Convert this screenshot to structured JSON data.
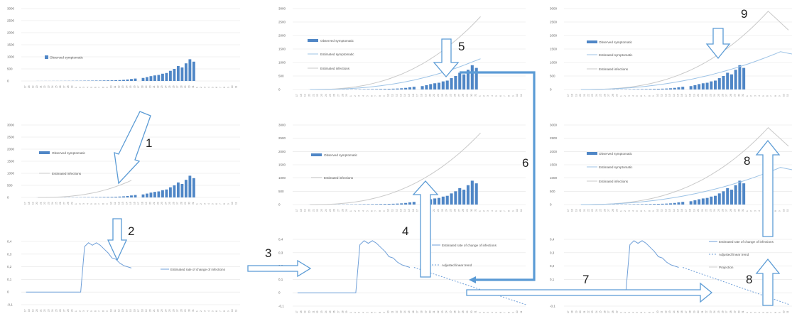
{
  "colors": {
    "bar": "#4f86c6",
    "observed_line": "#9dc3e6",
    "infection_line": "#c9c9c9",
    "rate_line": "#6f9fd8",
    "arrow_stroke": "#5b9bd5",
    "arrow_fill": "#ffffff",
    "connector": "#5b9bd5",
    "grid": "#e4e4e4"
  },
  "count_yticks": [
    "3000",
    "2500",
    "2000",
    "1500",
    "1000",
    "500",
    "0"
  ],
  "rate_yticks": [
    "0,4",
    "0,3",
    "0,2",
    "0,1",
    "0",
    "-0,1"
  ],
  "x_labels": [
    "17",
    "18",
    "19",
    "20",
    "21",
    "22",
    "23",
    "24",
    "25",
    "26",
    "27",
    "28",
    "29",
    "1",
    "2",
    "3",
    "4",
    "5",
    "6",
    "7",
    "8",
    "9",
    "10",
    "11",
    "12",
    "13",
    "14",
    "15",
    "16",
    "17",
    "18",
    "19",
    "20",
    "21",
    "22",
    "23",
    "24",
    "25",
    "26",
    "27",
    "28",
    "29",
    "30",
    "31",
    "1",
    "2",
    "3",
    "4",
    "5",
    "6",
    "7",
    "8",
    "9",
    "10",
    "11"
  ],
  "observed_symptomatic": [
    2,
    2,
    3,
    3,
    4,
    4,
    5,
    6,
    7,
    8,
    9,
    10,
    12,
    14,
    15,
    17,
    18,
    21,
    24,
    26,
    30,
    36,
    45,
    60,
    82,
    100,
    0,
    125,
    160,
    200,
    230,
    250,
    300,
    330,
    420,
    500,
    620,
    560,
    730,
    900,
    800
  ],
  "legend": {
    "observed": "Observed symptomatic",
    "est_symptomatic": "Estimated symptomatic",
    "est_infections": "Estimated infections",
    "rate": "Estimated rate of change of infections",
    "trend": "Adjusted linear trend",
    "projection": "Projection"
  },
  "steps": [
    "1",
    "2",
    "3",
    "4",
    "5",
    "6",
    "7",
    "8",
    "8",
    "9"
  ]
}
